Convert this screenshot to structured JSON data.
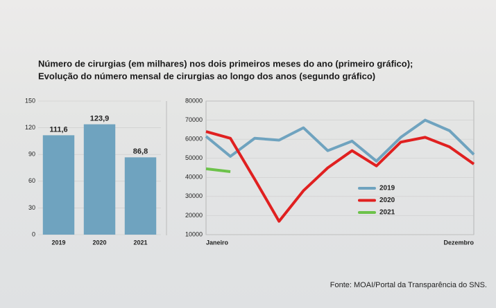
{
  "title": [
    "Número de cirurgias (em milhares) nos dois primeiros meses do ano (primeiro gráfico);",
    "Evolução do número mensal de cirurgias ao longo dos anos (segundo gráfico)"
  ],
  "source": "Fonte: MOAI/Portal da Transparência do SNS.",
  "chart_data": [
    {
      "type": "bar",
      "categories": [
        "2019",
        "2020",
        "2021"
      ],
      "values": [
        111.6,
        123.9,
        86.8
      ],
      "value_labels": [
        "111,6",
        "123,9",
        "86,8"
      ],
      "color": "#6fa3bf",
      "ylim": [
        0,
        150
      ],
      "yticks": [
        0,
        30,
        60,
        90,
        120,
        150
      ],
      "grid": true
    },
    {
      "type": "line",
      "x": [
        "Janeiro",
        null,
        null,
        null,
        null,
        null,
        null,
        null,
        null,
        null,
        null,
        "Dezembro"
      ],
      "series": [
        {
          "name": "2019",
          "color": "#6fa3bf",
          "values": [
            61500,
            51000,
            60500,
            59500,
            66000,
            54000,
            59000,
            48500,
            61000,
            70000,
            64500,
            52000
          ]
        },
        {
          "name": "2020",
          "color": "#e02020",
          "values": [
            64000,
            60500,
            39000,
            17000,
            33000,
            45000,
            54000,
            46000,
            58500,
            61000,
            56000,
            47000
          ]
        },
        {
          "name": "2021",
          "color": "#6cc24a",
          "values": [
            44500,
            43000,
            null,
            null,
            null,
            null,
            null,
            null,
            null,
            null,
            null,
            null
          ]
        }
      ],
      "ylim": [
        10000,
        80000
      ],
      "yticks": [
        10000,
        20000,
        30000,
        40000,
        50000,
        60000,
        70000,
        80000
      ],
      "grid": true,
      "legend": "right"
    }
  ]
}
